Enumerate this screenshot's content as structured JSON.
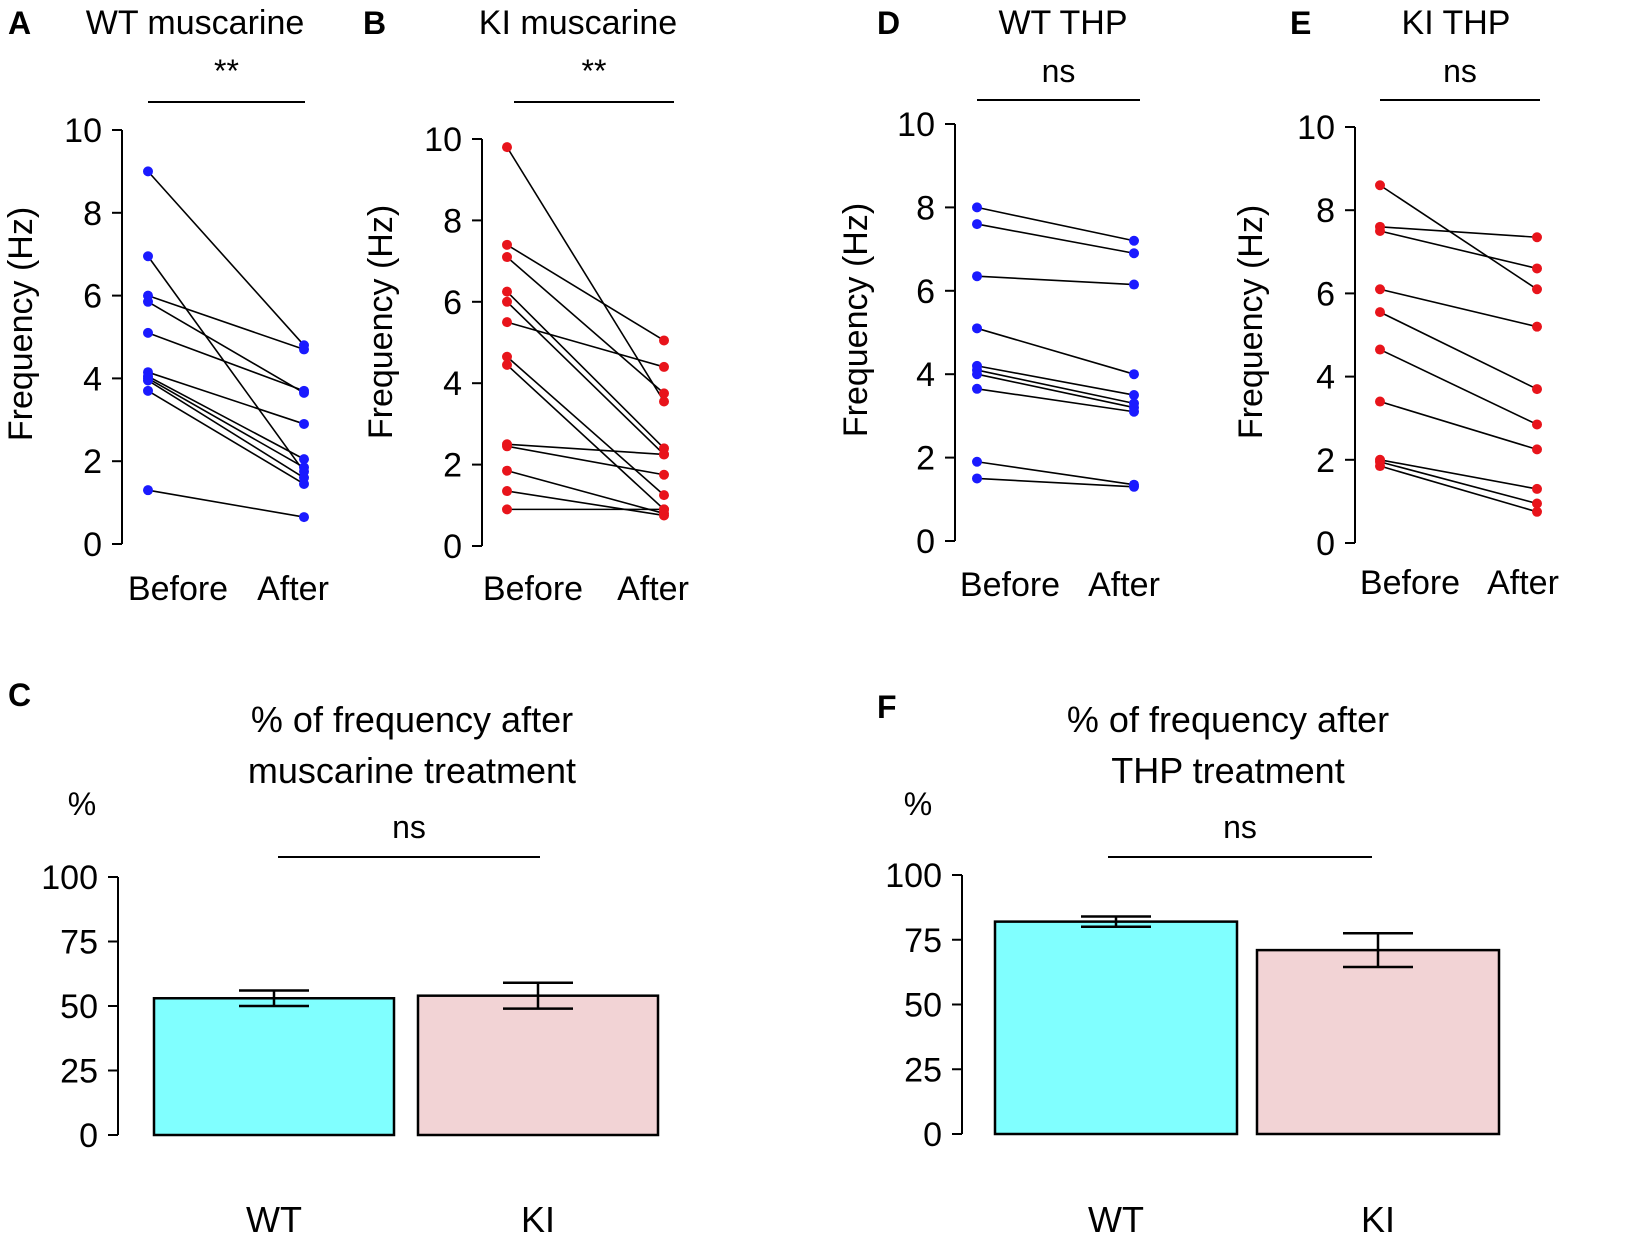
{
  "chart_data": [
    {
      "type": "paired-scatter",
      "panel_label": "A",
      "title": "WT muscarine",
      "ylabel": "Frequency (Hz)",
      "ylim": [
        0,
        10
      ],
      "yticks": [
        "0",
        "2",
        "4",
        "6",
        "8",
        "10"
      ],
      "categories": [
        "Before",
        "After"
      ],
      "point_color": "#1a1aff",
      "significance": "**",
      "pairs": [
        [
          9.0,
          4.8
        ],
        [
          6.95,
          1.75
        ],
        [
          6.0,
          4.7
        ],
        [
          5.85,
          3.65
        ],
        [
          5.1,
          3.7
        ],
        [
          4.15,
          2.9
        ],
        [
          4.05,
          2.05
        ],
        [
          4.0,
          1.85
        ],
        [
          3.95,
          1.6
        ],
        [
          3.7,
          1.45
        ],
        [
          1.3,
          0.65
        ]
      ]
    },
    {
      "type": "paired-scatter",
      "panel_label": "B",
      "title": "KI muscarine",
      "ylabel": "Frequency (Hz)",
      "ylim": [
        0,
        10
      ],
      "yticks": [
        "0",
        "2",
        "4",
        "6",
        "8",
        "10"
      ],
      "categories": [
        "Before",
        "After"
      ],
      "point_color": "#e8141b",
      "significance": "**",
      "pairs": [
        [
          9.8,
          3.55
        ],
        [
          7.4,
          5.05
        ],
        [
          7.1,
          3.75
        ],
        [
          6.25,
          2.4
        ],
        [
          6.0,
          2.25
        ],
        [
          5.5,
          4.4
        ],
        [
          4.65,
          1.25
        ],
        [
          4.45,
          0.9
        ],
        [
          2.5,
          2.25
        ],
        [
          2.45,
          1.75
        ],
        [
          1.85,
          0.8
        ],
        [
          1.35,
          0.75
        ],
        [
          0.9,
          0.9
        ]
      ]
    },
    {
      "type": "bar",
      "panel_label": "C",
      "title": "% of frequency after muscarine treatment",
      "title_lines": [
        "% of frequency after",
        "muscarine treatment"
      ],
      "ylabel": "%",
      "ylim": [
        0,
        100
      ],
      "yticks": [
        "0",
        "25",
        "50",
        "75",
        "100"
      ],
      "categories": [
        "WT",
        "KI"
      ],
      "values": [
        53,
        54
      ],
      "errors": [
        3,
        5
      ],
      "colors": [
        "#80ffff",
        "#f2d3d5"
      ],
      "significance": "ns"
    },
    {
      "type": "paired-scatter",
      "panel_label": "D",
      "title": "WT THP",
      "ylabel": "Frequency (Hz)",
      "ylim": [
        0,
        10
      ],
      "yticks": [
        "0",
        "2",
        "4",
        "6",
        "8",
        "10"
      ],
      "categories": [
        "Before",
        "After"
      ],
      "point_color": "#1a1aff",
      "significance": "ns",
      "pairs": [
        [
          8.0,
          7.2
        ],
        [
          7.6,
          6.9
        ],
        [
          6.35,
          6.15
        ],
        [
          5.1,
          4.0
        ],
        [
          4.2,
          3.5
        ],
        [
          4.1,
          3.3
        ],
        [
          4.0,
          3.2
        ],
        [
          3.65,
          3.1
        ],
        [
          1.9,
          1.35
        ],
        [
          1.5,
          1.3
        ]
      ]
    },
    {
      "type": "paired-scatter",
      "panel_label": "E",
      "title": "KI THP",
      "ylabel": "Frequency (Hz)",
      "ylim": [
        0,
        10
      ],
      "yticks": [
        "0",
        "2",
        "4",
        "6",
        "8",
        "10"
      ],
      "categories": [
        "Before",
        "After"
      ],
      "point_color": "#e8141b",
      "significance": "ns",
      "pairs": [
        [
          8.6,
          6.1
        ],
        [
          7.6,
          7.35
        ],
        [
          7.5,
          6.6
        ],
        [
          6.1,
          5.2
        ],
        [
          5.55,
          3.7
        ],
        [
          4.65,
          2.85
        ],
        [
          3.4,
          2.25
        ],
        [
          2.0,
          1.3
        ],
        [
          1.95,
          0.95
        ],
        [
          1.85,
          0.75
        ]
      ]
    },
    {
      "type": "bar",
      "panel_label": "F",
      "title": "% of frequency after THP treatment",
      "title_lines": [
        "% of frequency after",
        "THP treatment"
      ],
      "ylabel": "%",
      "ylim": [
        0,
        100
      ],
      "yticks": [
        "0",
        "25",
        "50",
        "75",
        "100"
      ],
      "categories": [
        "WT",
        "KI"
      ],
      "values": [
        82,
        71
      ],
      "errors": [
        2,
        6.5
      ],
      "colors": [
        "#80ffff",
        "#f2d3d5"
      ],
      "significance": "ns"
    }
  ]
}
